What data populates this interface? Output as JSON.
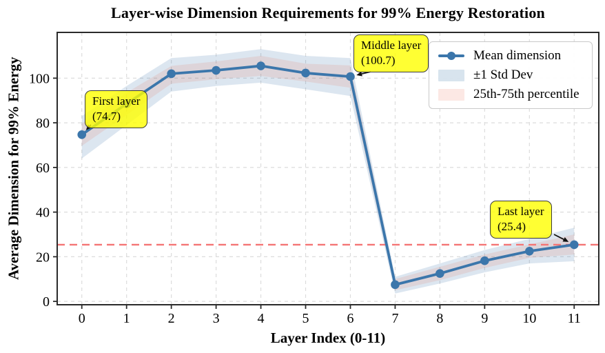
{
  "chart_data": {
    "type": "line",
    "title": "Layer-wise Dimension Requirements for 99% Energy Restoration",
    "xlabel": "Layer Index (0-11)",
    "ylabel": "Average Dimension for 99% Energy",
    "x": [
      0,
      1,
      2,
      3,
      4,
      5,
      6,
      7,
      8,
      9,
      10,
      11
    ],
    "series": [
      {
        "name": "Mean dimension",
        "values": [
          74.7,
          88.5,
          102.0,
          103.5,
          105.5,
          102.3,
          100.7,
          7.5,
          12.5,
          18.2,
          22.5,
          25.4
        ]
      }
    ],
    "std_band": {
      "name": "±1 Std Dev",
      "lower": [
        64.0,
        79.0,
        94.0,
        96.5,
        98.0,
        95.0,
        92.0,
        3.5,
        8.0,
        13.0,
        17.0,
        18.0
      ],
      "upper": [
        83.0,
        96.5,
        109.0,
        110.5,
        113.0,
        110.0,
        109.0,
        11.0,
        17.0,
        23.0,
        28.0,
        33.0
      ]
    },
    "percentile_band": {
      "name": "25th-75th percentile",
      "lower": [
        69.7,
        83.5,
        97.5,
        99.5,
        101.0,
        98.5,
        95.7,
        5.0,
        9.5,
        15.0,
        19.5,
        21.0
      ],
      "upper": [
        79.7,
        93.5,
        105.5,
        107.5,
        110.0,
        106.5,
        105.7,
        10.0,
        15.5,
        21.0,
        25.5,
        30.0
      ]
    },
    "reference_line": {
      "y": 25.4
    },
    "xlim": [
      -0.55,
      11.55
    ],
    "ylim": [
      -1.5,
      120.5
    ],
    "xticks": [
      0,
      1,
      2,
      3,
      4,
      5,
      6,
      7,
      8,
      9,
      10,
      11
    ],
    "yticks": [
      0,
      20,
      40,
      60,
      80,
      100
    ],
    "grid": true,
    "legend_position": "upper right",
    "legend": [
      "Mean dimension",
      "±1 Std Dev",
      "25th-75th percentile"
    ],
    "annotations": [
      {
        "line1": "First layer",
        "line2": "(74.7)",
        "target_layer": 0
      },
      {
        "line1": "Middle layer",
        "line2": "(100.7)",
        "target_layer": 6
      },
      {
        "line1": "Last layer",
        "line2": "(25.4)",
        "target_layer": 11
      }
    ],
    "colors": {
      "line": "#3b76ab",
      "std_fill": "rgba(59,118,171,0.18)",
      "pct_fill": "rgba(232,89,63,0.13)",
      "ref_line": "#f47474",
      "grid": "#dcdcdc",
      "spine": "#2a2a2a",
      "annotation_bg": "#ffff00"
    }
  }
}
